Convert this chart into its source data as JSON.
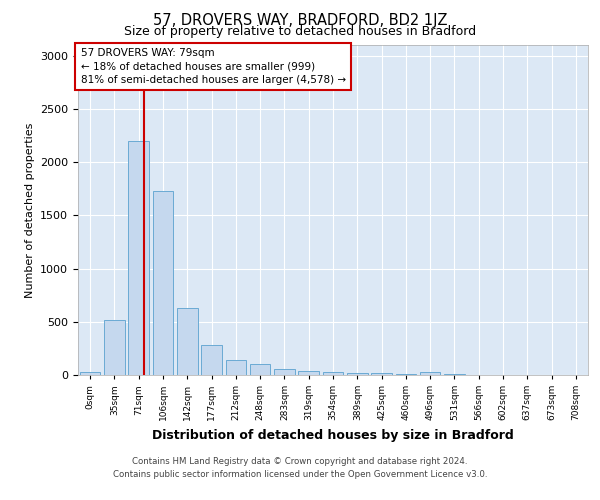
{
  "title1": "57, DROVERS WAY, BRADFORD, BD2 1JZ",
  "title2": "Size of property relative to detached houses in Bradford",
  "xlabel": "Distribution of detached houses by size in Bradford",
  "ylabel": "Number of detached properties",
  "bar_labels": [
    "0sqm",
    "35sqm",
    "71sqm",
    "106sqm",
    "142sqm",
    "177sqm",
    "212sqm",
    "248sqm",
    "283sqm",
    "319sqm",
    "354sqm",
    "389sqm",
    "425sqm",
    "460sqm",
    "496sqm",
    "531sqm",
    "566sqm",
    "602sqm",
    "637sqm",
    "673sqm",
    "708sqm"
  ],
  "bar_values": [
    30,
    520,
    2200,
    1730,
    630,
    280,
    145,
    100,
    60,
    40,
    30,
    20,
    15,
    10,
    25,
    5,
    3,
    3,
    2,
    2,
    1
  ],
  "bar_color": "#c5d8ee",
  "bar_edge_color": "#6aaad4",
  "ylim": [
    0,
    3100
  ],
  "yticks": [
    0,
    500,
    1000,
    1500,
    2000,
    2500,
    3000
  ],
  "annotation_text": "57 DROVERS WAY: 79sqm\n← 18% of detached houses are smaller (999)\n81% of semi-detached houses are larger (4,578) →",
  "annotation_border_color": "#cc0000",
  "red_line_color": "#cc0000",
  "footer1": "Contains HM Land Registry data © Crown copyright and database right 2024.",
  "footer2": "Contains public sector information licensed under the Open Government Licence v3.0.",
  "fig_bg_color": "#ffffff",
  "plot_bg_color": "#dce8f5"
}
